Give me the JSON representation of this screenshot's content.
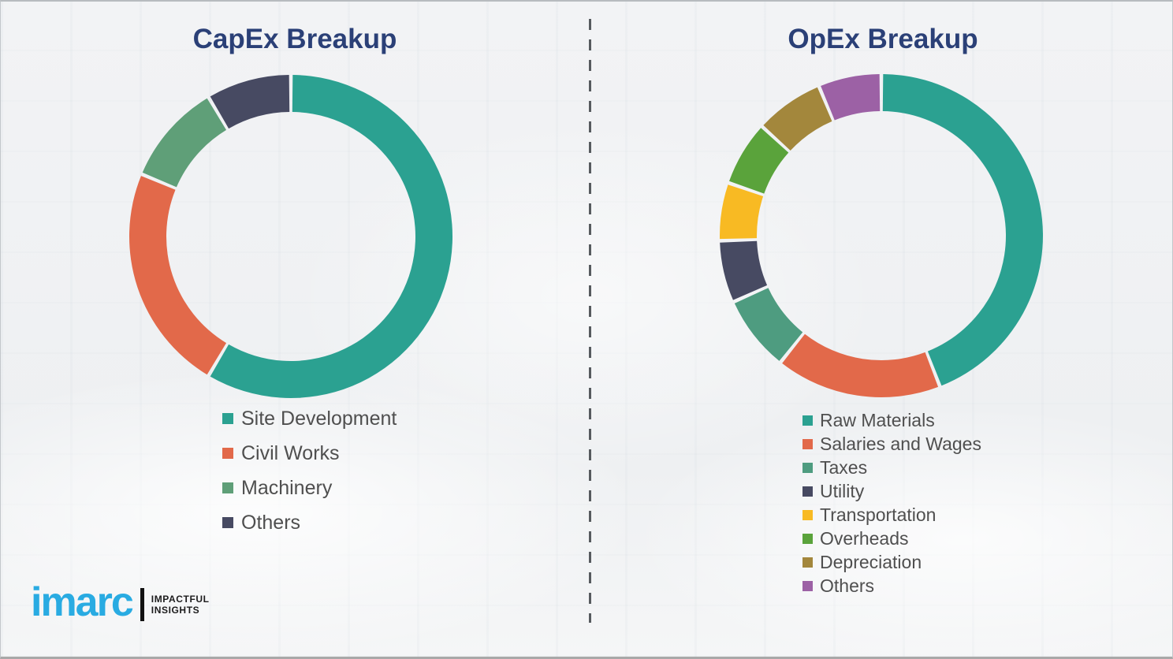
{
  "chart_data": [
    {
      "type": "pie",
      "variant": "donut",
      "title": "CapEx Breakup",
      "legend_position": "below-left",
      "categories": [
        "Site Development",
        "Civil Works",
        "Machinery",
        "Others"
      ],
      "values": [
        58.5,
        22.8,
        10.2,
        8.5
      ],
      "colors": [
        "#2ba191",
        "#e2694a",
        "#5f9f78",
        "#474a62"
      ],
      "value_unit": "percent"
    },
    {
      "type": "pie",
      "variant": "donut",
      "title": "OpEx Breakup",
      "legend_position": "below-left",
      "categories": [
        "Raw Materials",
        "Salaries and Wages",
        "Taxes",
        "Utility",
        "Transportation",
        "Overheads",
        "Depreciation",
        "Others"
      ],
      "values": [
        44.1,
        16.6,
        7.6,
        6.2,
        5.8,
        6.5,
        6.9,
        6.3
      ],
      "colors": [
        "#2ba191",
        "#e2694a",
        "#4e9c80",
        "#474a62",
        "#f8ba23",
        "#5aa33b",
        "#a3873c",
        "#9c61a5"
      ],
      "value_unit": "percent"
    }
  ],
  "branding": {
    "logo_text": "imarc",
    "tagline_line1": "IMPACTFUL",
    "tagline_line2": "INSIGHTS",
    "logo_color": "#29abe2"
  },
  "style": {
    "title_color": "#2b4077",
    "legend_text_color": "#4f4f4f",
    "divider_color": "#565a5e"
  }
}
